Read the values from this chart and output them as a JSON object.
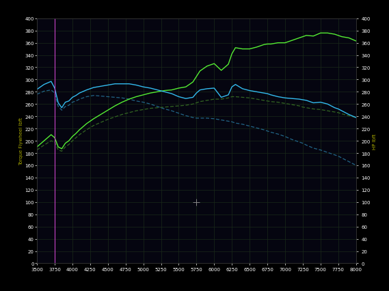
{
  "background_color": "#000000",
  "plot_bg_color": "#050510",
  "grid_color": "#1a2a1a",
  "x_min": 3500,
  "x_max": 8000,
  "y_min": 0,
  "y_max": 400,
  "x_ticks": [
    3500,
    3750,
    4000,
    4250,
    4500,
    4750,
    5000,
    5250,
    5500,
    5750,
    6000,
    6250,
    6500,
    6750,
    7000,
    7250,
    7500,
    7750,
    8000
  ],
  "y_ticks": [
    0,
    20,
    40,
    60,
    80,
    100,
    120,
    140,
    160,
    180,
    200,
    220,
    240,
    260,
    280,
    300,
    320,
    340,
    360,
    380,
    400
  ],
  "ylabel_left": "Torque Flywheel lbft",
  "ylabel_right": "HP lbft",
  "line_color_hp_after": "#55ee33",
  "line_color_tq_after": "#33bbee",
  "line_color_hp_before": "#336622",
  "line_color_tq_before": "#226688",
  "cursor_color_magenta": "#cc44cc",
  "crosshair_color": "#888888",
  "title_bar_color": "#aaaaaa",
  "rpm": [
    3500,
    3600,
    3700,
    3750,
    3800,
    3850,
    3900,
    3950,
    4000,
    4050,
    4100,
    4200,
    4300,
    4400,
    4500,
    4600,
    4700,
    4800,
    4900,
    5000,
    5100,
    5200,
    5300,
    5400,
    5500,
    5600,
    5700,
    5750,
    5800,
    5900,
    6000,
    6100,
    6200,
    6250,
    6300,
    6400,
    6500,
    6600,
    6700,
    6750,
    6800,
    6900,
    7000,
    7100,
    7200,
    7250,
    7300,
    7400,
    7500,
    7600,
    7700,
    7750,
    7800,
    7900,
    8000
  ],
  "hp_after": [
    190,
    200,
    210,
    205,
    190,
    187,
    196,
    200,
    207,
    212,
    218,
    228,
    236,
    243,
    250,
    257,
    263,
    268,
    272,
    275,
    278,
    280,
    282,
    283,
    286,
    288,
    296,
    305,
    314,
    322,
    326,
    315,
    325,
    342,
    352,
    350,
    350,
    353,
    357,
    358,
    358,
    360,
    360,
    364,
    368,
    370,
    372,
    371,
    376,
    376,
    374,
    372,
    370,
    368,
    363
  ],
  "tq_after": [
    284,
    292,
    297,
    286,
    262,
    254,
    263,
    265,
    271,
    274,
    278,
    283,
    287,
    289,
    291,
    293,
    293,
    293,
    291,
    288,
    286,
    283,
    280,
    277,
    272,
    269,
    271,
    278,
    283,
    285,
    286,
    271,
    275,
    288,
    292,
    285,
    282,
    280,
    278,
    277,
    275,
    272,
    270,
    269,
    268,
    267,
    266,
    262,
    263,
    260,
    254,
    252,
    249,
    243,
    238
  ],
  "hp_before": [
    185,
    193,
    200,
    198,
    185,
    183,
    190,
    194,
    200,
    205,
    210,
    218,
    225,
    230,
    235,
    239,
    243,
    246,
    249,
    251,
    253,
    254,
    255,
    256,
    257,
    258,
    260,
    262,
    264,
    266,
    268,
    268,
    270,
    272,
    272,
    271,
    270,
    268,
    266,
    265,
    264,
    263,
    261,
    259,
    257,
    255,
    254,
    252,
    251,
    249,
    247,
    246,
    244,
    241,
    238
  ],
  "tq_before": [
    276,
    281,
    283,
    278,
    256,
    250,
    256,
    258,
    263,
    265,
    268,
    272,
    274,
    273,
    272,
    271,
    270,
    268,
    265,
    263,
    260,
    256,
    252,
    249,
    245,
    241,
    238,
    237,
    237,
    237,
    236,
    234,
    232,
    231,
    229,
    227,
    224,
    221,
    218,
    216,
    214,
    211,
    207,
    202,
    198,
    196,
    193,
    188,
    185,
    181,
    177,
    175,
    172,
    166,
    160
  ],
  "crosshair_x": 5750,
  "crosshair_y": 100,
  "cursor_x": 3750
}
